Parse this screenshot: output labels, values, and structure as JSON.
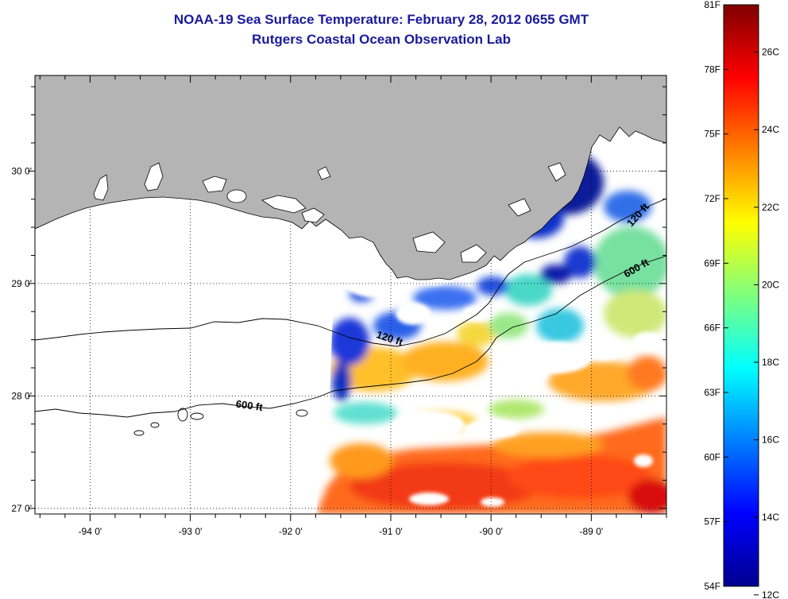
{
  "title": {
    "line1": "NOAA-19 Sea Surface Temperature:  February 28, 2012 0655 GMT",
    "line2": "Rutgers Coastal Ocean Observation Lab"
  },
  "map": {
    "lon_range": [
      -94.55,
      -88.25
    ],
    "lat_range": [
      26.95,
      30.85
    ],
    "lon_ticks": [
      {
        "value": -94,
        "label": "-94 0'"
      },
      {
        "value": -93,
        "label": "-93 0'"
      },
      {
        "value": -92,
        "label": "-92 0'"
      },
      {
        "value": -91,
        "label": "-91 0'"
      },
      {
        "value": -90,
        "label": "-90 0'"
      },
      {
        "value": -89,
        "label": "-89 0'"
      }
    ],
    "lat_ticks": [
      {
        "value": 27,
        "label": "27 0'"
      },
      {
        "value": 28,
        "label": "28 0'"
      },
      {
        "value": 29,
        "label": "29 0'"
      },
      {
        "value": 30,
        "label": "30 0'"
      }
    ],
    "contour_labels": [
      {
        "text": "120 ft",
        "lon": -91.15,
        "lat": 28.52,
        "angle": 18
      },
      {
        "text": "600 ft",
        "lon": -92.55,
        "lat": 27.9,
        "angle": 8
      },
      {
        "text": "120 ft",
        "lon": -88.6,
        "lat": 29.5,
        "angle": -48
      },
      {
        "text": "600 ft",
        "lon": -88.65,
        "lat": 29.05,
        "angle": -30
      }
    ],
    "colors": {
      "land": "#b4b4b4",
      "cloud": "#ffffff",
      "frame": "#000000",
      "grid": "#000000"
    }
  },
  "colorbar": {
    "temp_min_f": 54,
    "temp_max_f": 81,
    "f_labels": [
      "81F",
      "78F",
      "75F",
      "72F",
      "69F",
      "66F",
      "63F",
      "60F",
      "57F",
      "54F"
    ],
    "f_values": [
      81,
      78,
      75,
      72,
      69,
      66,
      63,
      60,
      57,
      54
    ],
    "c_labels": [
      "26C",
      "24C",
      "22C",
      "20C",
      "18C",
      "16C",
      "14C",
      "12C"
    ],
    "c_values": [
      26,
      24,
      22,
      20,
      18,
      16,
      14,
      12
    ],
    "colormap": [
      "#00008f",
      "#0000ff",
      "#007fff",
      "#00ffff",
      "#7fff7f",
      "#ffff00",
      "#ff7f00",
      "#ff0000",
      "#7f0000"
    ]
  }
}
